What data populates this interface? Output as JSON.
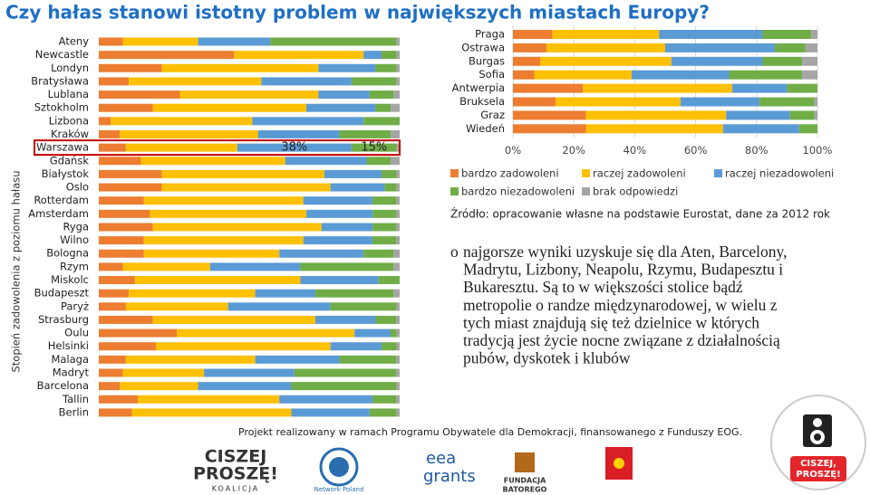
{
  "title": "Czy hałas stanowi istotny problem w największych miastach Europy?",
  "chart_data": [
    {
      "type": "bar",
      "horizontal": true,
      "stacked": true,
      "y_label": "Stopień zadowolenia z poziomu hałasu",
      "categories": [
        "Ateny",
        "Newcastle",
        "Londyn",
        "Bratysława",
        "Lublana",
        "Sztokholm",
        "Lizbona",
        "Kraków",
        "Warszawa",
        "Gdańsk",
        "Białystok",
        "Oslo",
        "Rotterdam",
        "Amsterdam",
        "Ryga",
        "Wilno",
        "Bologna",
        "Rzym",
        "Miskolc",
        "Budapeszt",
        "Paryż",
        "Strasburg",
        "Oulu",
        "Helsinki",
        "Malaga",
        "Madryt",
        "Barcelona",
        "Tallin",
        "Berlin"
      ],
      "xlim": [
        0,
        100
      ],
      "series": [
        {
          "color": "#ed7d31",
          "values": [
            8,
            45,
            21,
            10,
            27,
            18,
            4,
            7,
            9,
            14,
            21,
            21,
            15,
            17,
            18,
            15,
            15,
            8,
            12,
            10,
            9,
            18,
            26,
            19,
            9,
            8,
            7,
            13,
            11
          ]
        },
        {
          "color": "#ffc000",
          "values": [
            25,
            43,
            52,
            44,
            46,
            51,
            47,
            46,
            37,
            48,
            54,
            56,
            53,
            52,
            56,
            53,
            45,
            29,
            55,
            42,
            34,
            54,
            59,
            58,
            43,
            27,
            26,
            47,
            53
          ]
        },
        {
          "color": "#5b9bd5",
          "values": [
            24,
            6,
            19,
            30,
            17,
            23,
            37,
            27,
            38,
            27,
            19,
            18,
            23,
            22,
            17,
            23,
            28,
            30,
            26,
            20,
            34,
            20,
            12,
            17,
            28,
            30,
            31,
            31,
            26
          ],
          "value_labels": [
            null,
            null,
            null,
            null,
            null,
            null,
            null,
            null,
            "38%",
            null,
            null,
            null,
            null,
            null,
            null,
            null,
            null,
            null,
            null,
            null,
            null,
            null,
            null,
            null,
            null,
            null,
            null,
            null,
            null
          ]
        },
        {
          "color": "#70ad47",
          "values": [
            42,
            5,
            7,
            15,
            8,
            5,
            12,
            17,
            15,
            8,
            5,
            4,
            8,
            8,
            8,
            8,
            10,
            31,
            7,
            26,
            22,
            7,
            2,
            5,
            19,
            34,
            35,
            8,
            9
          ],
          "value_labels": [
            null,
            null,
            null,
            null,
            null,
            null,
            null,
            null,
            "15%",
            null,
            null,
            null,
            null,
            null,
            null,
            null,
            null,
            null,
            null,
            null,
            null,
            null,
            null,
            null,
            null,
            null,
            null,
            null,
            null
          ]
        },
        {
          "color": "#a5a5a5",
          "values": [
            1,
            1,
            1,
            1,
            2,
            3,
            0,
            3,
            1,
            3,
            1,
            1,
            1,
            1,
            1,
            1,
            2,
            2,
            0,
            2,
            1,
            1,
            1,
            1,
            1,
            1,
            1,
            1,
            1
          ]
        }
      ]
    },
    {
      "type": "bar",
      "horizontal": true,
      "stacked": true,
      "grid": true,
      "categories": [
        "Praga",
        "Ostrawa",
        "Burgas",
        "Sofia",
        "Antwerpia",
        "Bruksela",
        "Graz",
        "Wiedeń"
      ],
      "xlim": [
        0,
        100
      ],
      "xticks": [
        {
          "value": 0,
          "label": "0%"
        },
        {
          "value": 20,
          "label": "20%"
        },
        {
          "value": 40,
          "label": "40%"
        },
        {
          "value": 60,
          "label": "60%"
        },
        {
          "value": 80,
          "label": "80%"
        },
        {
          "value": 100,
          "label": "100%"
        }
      ],
      "series": [
        {
          "name": "bardzo zadowoleni",
          "color": "#ed7d31",
          "values": [
            13,
            11,
            9,
            7,
            23,
            14,
            24,
            24
          ]
        },
        {
          "name": "raczej zadowoleni",
          "color": "#ffc000",
          "values": [
            35,
            39,
            43,
            32,
            49,
            41,
            46,
            45
          ]
        },
        {
          "name": "raczej niezadowoleni",
          "color": "#5b9bd5",
          "values": [
            34,
            36,
            30,
            32,
            18,
            26,
            21,
            25
          ]
        },
        {
          "name": "bardzo niezadowoleni",
          "color": "#70ad47",
          "values": [
            16,
            10,
            13,
            24,
            10,
            18,
            8,
            6
          ]
        },
        {
          "name": "brak odpowiedzi",
          "color": "#a5a5a5",
          "values": [
            2,
            4,
            5,
            5,
            0,
            1,
            1,
            0
          ]
        }
      ]
    }
  ],
  "source": "Źródło: opracowanie własne na podstawie Eurostat, dane za 2012 rok",
  "bullet": {
    "marker": "o",
    "lines": [
      "najgorsze wyniki uzyskuje się dla Aten, Barcelony,",
      "Madrytu, Lizbony, Neapolu, Rzymu, Budapesztu i",
      "Bukaresztu. Są to w większości stolice bądź",
      "metropolie o randze międzynarodowej, w wielu z",
      "tych miast znajdują się też dzielnice w których",
      "tradycją jest życie nocne związane z działalnością",
      "pubów, dyskotek i klubów"
    ]
  },
  "footer": "Projekt realizowany w ramach Programu Obywatele dla Demokracji, finansowanego z Funduszy EOG.",
  "logos": {
    "koalicja": [
      "CISZEJ",
      "PROSZĘ!",
      "KOALICJA"
    ],
    "global_compact": "Network Poland",
    "eea": [
      "eea",
      "grants"
    ],
    "batory": [
      "FUNDACJA",
      "BATOREGO"
    ],
    "ciszej": [
      "CISZEJ,",
      "PROSZĘ!"
    ]
  }
}
